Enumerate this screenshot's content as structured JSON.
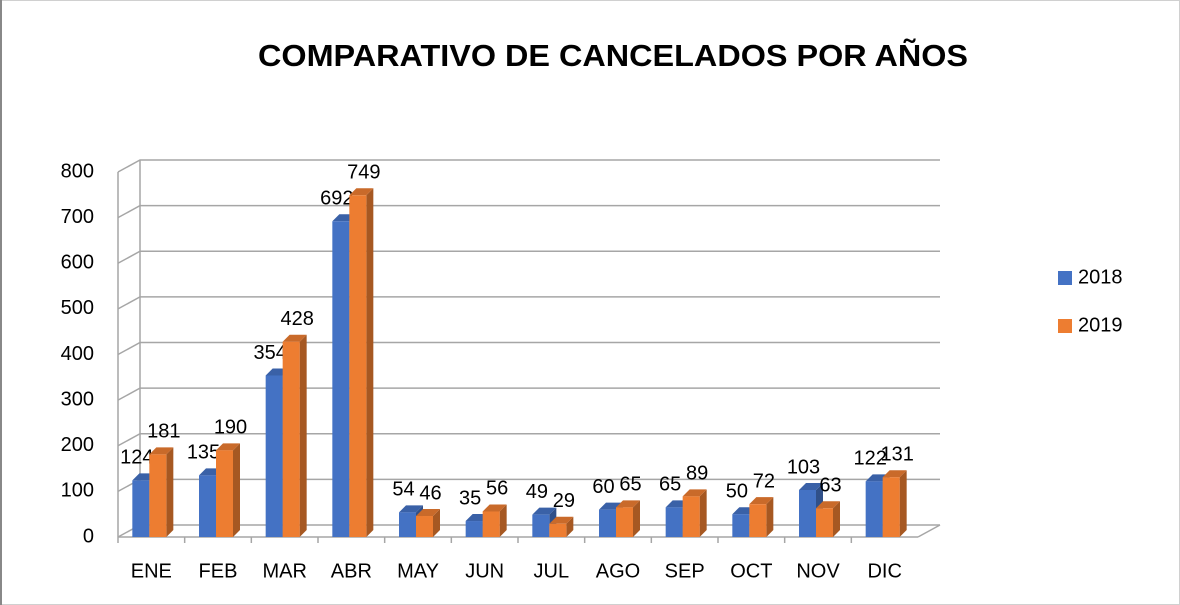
{
  "chart_data": {
    "type": "bar",
    "title": "COMPARATIVO DE CANCELADOS POR AÑOS",
    "categories": [
      "ENE",
      "FEB",
      "MAR",
      "ABR",
      "MAY",
      "JUN",
      "JUL",
      "AGO",
      "SEP",
      "OCT",
      "NOV",
      "DIC"
    ],
    "series": [
      {
        "name": "2018",
        "color": "#4472c4",
        "values": [
          124,
          135,
          354,
          692,
          54,
          35,
          49,
          60,
          65,
          50,
          103,
          122
        ]
      },
      {
        "name": "2019",
        "color": "#ed7d31",
        "values": [
          181,
          190,
          428,
          749,
          46,
          56,
          29,
          65,
          89,
          72,
          63,
          131
        ]
      }
    ],
    "ylim": [
      0,
      800
    ],
    "yticks": [
      0,
      100,
      200,
      300,
      400,
      500,
      600,
      700,
      800
    ],
    "grid": true,
    "legend": "right"
  }
}
